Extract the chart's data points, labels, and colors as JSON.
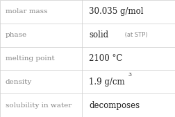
{
  "rows": [
    {
      "label": "molar mass",
      "value": "30.035 g/mol",
      "type": "simple"
    },
    {
      "label": "phase",
      "value": "solid",
      "value_suffix": " (at STP)",
      "type": "phase"
    },
    {
      "label": "melting point",
      "value": "2100 °C",
      "type": "simple"
    },
    {
      "label": "density",
      "value": "1.9 g/cm",
      "superscript": "3",
      "type": "density"
    },
    {
      "label": "solubility in water",
      "value": "decomposes",
      "type": "simple"
    }
  ],
  "col_split": 0.468,
  "background_color": "#ffffff",
  "border_color": "#cccccc",
  "label_color": "#888888",
  "value_color": "#222222",
  "label_fontsize": 7.5,
  "value_fontsize": 8.5,
  "suffix_fontsize": 6.0,
  "super_fontsize": 5.5,
  "font_family": "DejaVu Serif"
}
